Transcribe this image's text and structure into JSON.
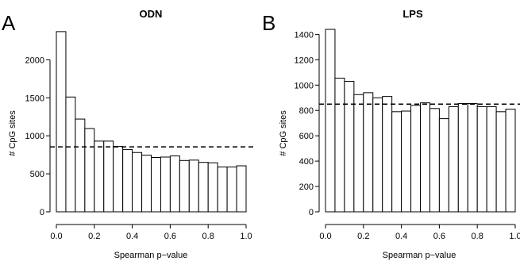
{
  "chart_data": [
    {
      "type": "bar",
      "panel_label": "A",
      "title": "ODN",
      "xlabel": "Spearman p−value",
      "ylabel": "# CpG sites",
      "bins": 20,
      "xlim": [
        0,
        1
      ],
      "ylim": [
        0,
        2400
      ],
      "xticks": [
        0,
        0.2,
        0.4,
        0.6,
        0.8,
        1.0
      ],
      "xtick_labels": [
        "0.0",
        "0.2",
        "0.4",
        "0.6",
        "0.8",
        "1.0"
      ],
      "yticks": [
        0,
        500,
        1000,
        1500,
        2000
      ],
      "ytick_labels": [
        "0",
        "500",
        "1000",
        "1500",
        "2000"
      ],
      "values": [
        2370,
        1510,
        1220,
        1095,
        930,
        930,
        860,
        820,
        780,
        745,
        715,
        720,
        735,
        675,
        680,
        650,
        645,
        590,
        590,
        605
      ],
      "reference_line": 855,
      "grid": false
    },
    {
      "type": "bar",
      "panel_label": "B",
      "title": "LPS",
      "xlabel": "Spearman p−value",
      "ylabel": "# CpG sites",
      "bins": 20,
      "xlim": [
        0,
        1
      ],
      "ylim": [
        0,
        1440
      ],
      "xticks": [
        0,
        0.2,
        0.4,
        0.6,
        0.8,
        1.0
      ],
      "xtick_labels": [
        "0.0",
        "0.2",
        "0.4",
        "0.6",
        "0.8",
        "1.0"
      ],
      "yticks": [
        0,
        200,
        400,
        600,
        800,
        1000,
        1200,
        1400
      ],
      "ytick_labels": [
        "0",
        "200",
        "400",
        "600",
        "800",
        "1000",
        "1200",
        "1400"
      ],
      "values": [
        1440,
        1055,
        1030,
        925,
        940,
        900,
        910,
        790,
        795,
        840,
        860,
        815,
        735,
        830,
        855,
        855,
        830,
        830,
        790,
        810
      ],
      "reference_line": 850,
      "grid": false
    }
  ]
}
